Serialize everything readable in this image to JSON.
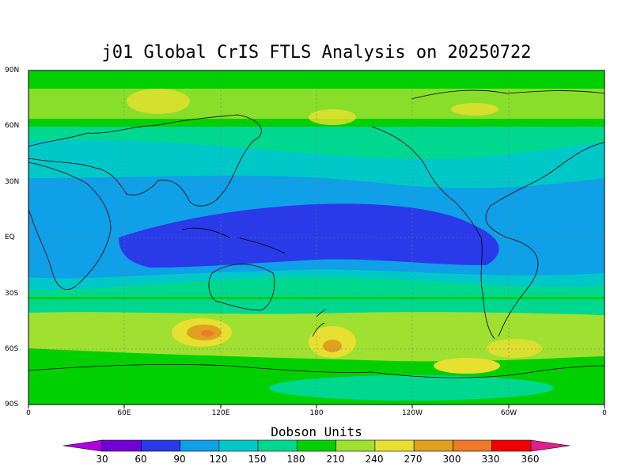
{
  "title": "j01 Global CrIS FTLS Analysis on 20250722",
  "y_ticks": [
    "90N",
    "60N",
    "30N",
    "EQ",
    "30S",
    "60S",
    "90S"
  ],
  "x_ticks": [
    "0",
    "60E",
    "120E",
    "180",
    "120W",
    "60W",
    "0"
  ],
  "colorbar": {
    "title": "Dobson Units",
    "labels": [
      "30",
      "60",
      "90",
      "120",
      "150",
      "180",
      "210",
      "240",
      "270",
      "300",
      "330",
      "360"
    ],
    "colors": [
      "#b000e0",
      "#7000d8",
      "#2a3ae8",
      "#0fa0e8",
      "#00c8c8",
      "#00d890",
      "#00d000",
      "#a0e030",
      "#e8e030",
      "#e0a020",
      "#f07828",
      "#f00000",
      "#e0208c"
    ]
  }
}
